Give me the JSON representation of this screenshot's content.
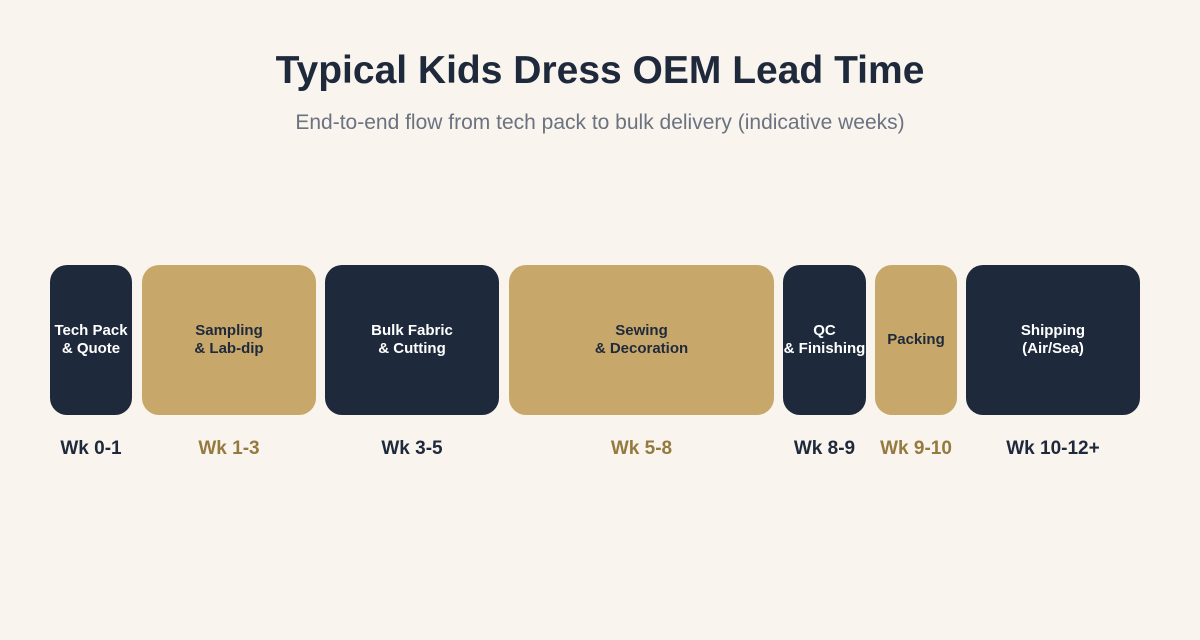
{
  "header": {
    "title": "Typical Kids Dress OEM Lead Time",
    "subtitle": "End-to-end flow from tech pack to bulk delivery (indicative weeks)"
  },
  "colors": {
    "background": "#f9f4ed",
    "dark": "#1e293b",
    "gold": "#c8a86a",
    "gold_text": "#957a3f"
  },
  "stages": [
    {
      "label": "Tech Pack\n& Quote",
      "weeks": "Wk 0-1",
      "tone": "dark"
    },
    {
      "label": "Sampling\n& Lab-dip",
      "weeks": "Wk 1-3",
      "tone": "gold"
    },
    {
      "label": "Bulk Fabric\n& Cutting",
      "weeks": "Wk 3-5",
      "tone": "dark"
    },
    {
      "label": "Sewing\n& Decoration",
      "weeks": "Wk 5-8",
      "tone": "gold"
    },
    {
      "label": "QC\n& Finishing",
      "weeks": "Wk 8-9",
      "tone": "dark"
    },
    {
      "label": "Packing",
      "weeks": "Wk 9-10",
      "tone": "gold"
    },
    {
      "label": "Shipping\n(Air/Sea)",
      "weeks": "Wk 10-12+",
      "tone": "dark"
    }
  ]
}
